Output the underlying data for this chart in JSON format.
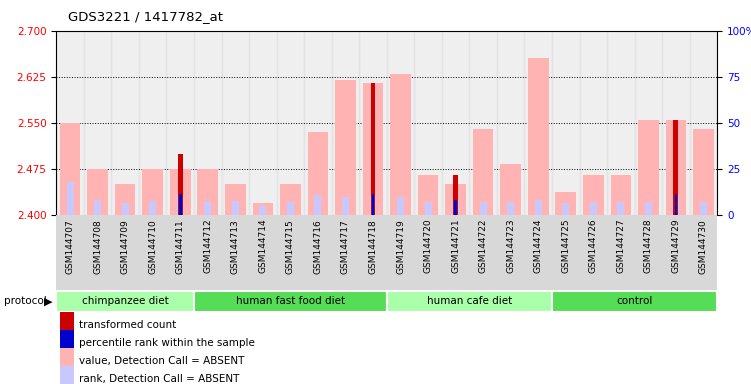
{
  "title": "GDS3221 / 1417782_at",
  "samples": [
    "GSM144707",
    "GSM144708",
    "GSM144709",
    "GSM144710",
    "GSM144711",
    "GSM144712",
    "GSM144713",
    "GSM144714",
    "GSM144715",
    "GSM144716",
    "GSM144717",
    "GSM144718",
    "GSM144719",
    "GSM144720",
    "GSM144721",
    "GSM144722",
    "GSM144723",
    "GSM144724",
    "GSM144725",
    "GSM144726",
    "GSM144727",
    "GSM144728",
    "GSM144729",
    "GSM144730"
  ],
  "groups": [
    {
      "label": "chimpanzee diet",
      "start": 0,
      "end": 5,
      "color": "#aaffaa"
    },
    {
      "label": "human fast food diet",
      "start": 5,
      "end": 12,
      "color": "#55dd55"
    },
    {
      "label": "human cafe diet",
      "start": 12,
      "end": 18,
      "color": "#aaffaa"
    },
    {
      "label": "control",
      "start": 18,
      "end": 24,
      "color": "#55dd55"
    }
  ],
  "ylim_left": [
    2.4,
    2.7
  ],
  "ylim_right": [
    0,
    100
  ],
  "yticks_left": [
    2.4,
    2.475,
    2.55,
    2.625,
    2.7
  ],
  "yticks_right": [
    0,
    25,
    50,
    75,
    100
  ],
  "value_bars": [
    2.55,
    2.475,
    2.45,
    2.475,
    2.475,
    2.475,
    2.45,
    2.42,
    2.45,
    2.535,
    2.62,
    2.615,
    2.63,
    2.465,
    2.45,
    2.54,
    2.483,
    2.655,
    2.437,
    2.465,
    2.465,
    2.555,
    2.555,
    2.54
  ],
  "rank_bars": [
    2.453,
    2.424,
    2.42,
    2.423,
    2.43,
    2.423,
    2.423,
    2.415,
    2.422,
    2.432,
    2.43,
    2.432,
    2.43,
    2.421,
    2.422,
    2.422,
    2.422,
    2.425,
    2.42,
    2.421,
    2.421,
    2.422,
    2.424,
    2.421
  ],
  "transformed_counts": [
    null,
    null,
    null,
    null,
    2.5,
    null,
    null,
    null,
    null,
    null,
    null,
    2.615,
    null,
    null,
    2.465,
    null,
    null,
    null,
    null,
    null,
    null,
    null,
    2.555,
    null
  ],
  "percentile_ranks": [
    null,
    null,
    null,
    null,
    2.434,
    null,
    null,
    null,
    null,
    null,
    null,
    2.434,
    null,
    null,
    2.425,
    null,
    null,
    null,
    null,
    null,
    null,
    null,
    2.435,
    null
  ],
  "value_color": "#ffb3b3",
  "rank_color": "#c8c8ff",
  "transformed_color": "#cc0000",
  "percentile_color": "#0000cc"
}
